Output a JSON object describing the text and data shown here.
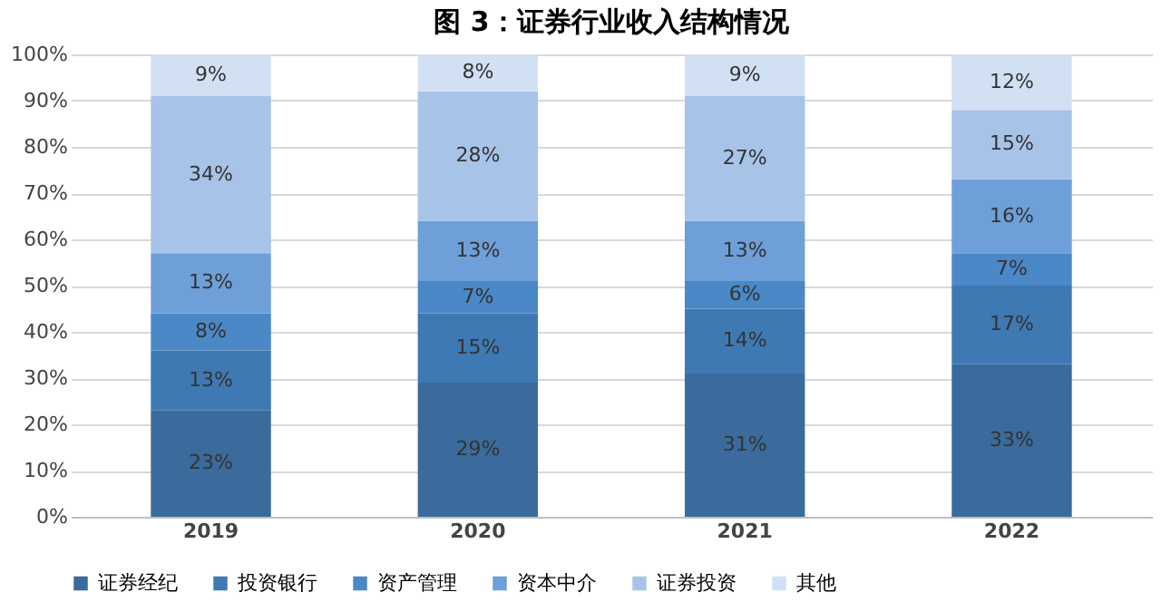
{
  "chart_data": {
    "type": "bar",
    "title": "图 3：证券行业收入结构情况",
    "stacked": true,
    "categories": [
      "2019",
      "2020",
      "2021",
      "2022"
    ],
    "ylim": [
      0,
      100
    ],
    "yticks": [
      {
        "value": 0,
        "label": "0%"
      },
      {
        "value": 10,
        "label": "10%"
      },
      {
        "value": 20,
        "label": "20%"
      },
      {
        "value": 30,
        "label": "30%"
      },
      {
        "value": 40,
        "label": "40%"
      },
      {
        "value": 50,
        "label": "50%"
      },
      {
        "value": 60,
        "label": "60%"
      },
      {
        "value": 70,
        "label": "70%"
      },
      {
        "value": 80,
        "label": "80%"
      },
      {
        "value": 90,
        "label": "90%"
      },
      {
        "value": 100,
        "label": "100%"
      }
    ],
    "grid": "y",
    "legend": "bottom",
    "series": [
      {
        "name": "证券经纪",
        "color": "#3a6b9c",
        "values": [
          23,
          29,
          31,
          33
        ],
        "value_labels": [
          "23%",
          "29%",
          "31%",
          "33%"
        ]
      },
      {
        "name": "投资银行",
        "color": "#3f79b3",
        "values": [
          13,
          15,
          14,
          17
        ],
        "value_labels": [
          "13%",
          "15%",
          "14%",
          "17%"
        ]
      },
      {
        "name": "资产管理",
        "color": "#4a88c8",
        "values": [
          8,
          7,
          6,
          7
        ],
        "value_labels": [
          "8%",
          "7%",
          "6%",
          "7%"
        ]
      },
      {
        "name": "资本中介",
        "color": "#6e9fd9",
        "values": [
          13,
          13,
          13,
          16
        ],
        "value_labels": [
          "13%",
          "13%",
          "13%",
          "16%"
        ]
      },
      {
        "name": "证券投资",
        "color": "#a8c3e8",
        "values": [
          34,
          28,
          27,
          15
        ],
        "value_labels": [
          "34%",
          "28%",
          "27%",
          "15%"
        ]
      },
      {
        "name": "其他",
        "color": "#d2e0f3",
        "values": [
          9,
          8,
          9,
          12
        ],
        "value_labels": [
          "9%",
          "8%",
          "9%",
          "12%"
        ]
      }
    ]
  }
}
